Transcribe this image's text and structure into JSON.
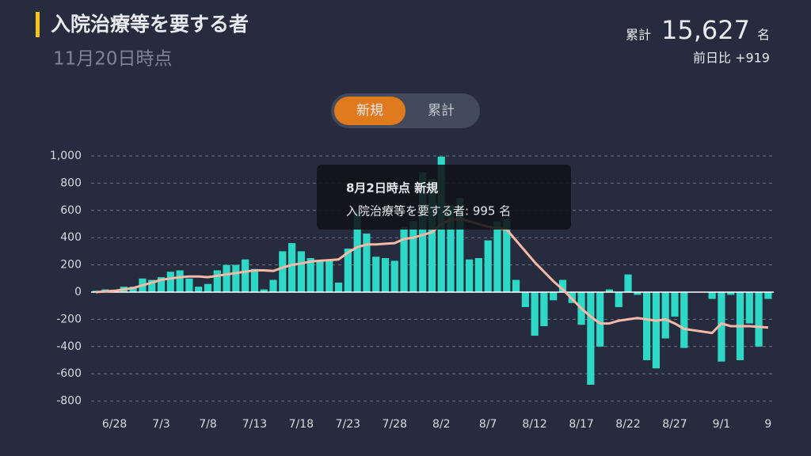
{
  "header": {
    "title": "入院治療等を要する者",
    "subtitle": "11月20日時点",
    "total_label": "累計",
    "total": "15,627",
    "total_unit": "名",
    "change": "前日比 +919"
  },
  "toggle": {
    "options": [
      "新規",
      "累計"
    ]
  },
  "tooltip": {
    "title": "8月2日時点 新規",
    "text": "入院治療等を要する者: 995 名"
  },
  "chart_data": {
    "type": "bar",
    "categories": [
      null,
      null,
      "6/28",
      null,
      null,
      null,
      null,
      "7/3",
      null,
      null,
      null,
      null,
      "7/8",
      null,
      null,
      null,
      null,
      "7/13",
      null,
      null,
      null,
      null,
      "7/18",
      null,
      null,
      null,
      null,
      "7/23",
      null,
      null,
      null,
      null,
      "7/28",
      null,
      null,
      null,
      null,
      "8/2",
      null,
      null,
      null,
      null,
      "8/7",
      null,
      null,
      null,
      null,
      "8/12",
      null,
      null,
      null,
      null,
      "8/17",
      null,
      null,
      null,
      null,
      "8/22",
      null,
      null,
      null,
      null,
      "8/27",
      null,
      null,
      null,
      null,
      "9/1",
      null,
      null,
      null,
      null,
      "9"
    ],
    "series": [
      {
        "type": "bar",
        "color": "#2ed8c6",
        "values": [
          10,
          20,
          10,
          40,
          40,
          100,
          90,
          110,
          150,
          160,
          100,
          40,
          60,
          160,
          200,
          200,
          240,
          170,
          20,
          90,
          300,
          360,
          300,
          250,
          230,
          240,
          70,
          320,
          600,
          430,
          260,
          250,
          230,
          480,
          520,
          880,
          830,
          995,
          640,
          690,
          240,
          250,
          380,
          520,
          540,
          90,
          -110,
          -320,
          -250,
          -60,
          90,
          -80,
          -240,
          -680,
          -400,
          20,
          -110,
          130,
          -20,
          -500,
          -560,
          -340,
          -180,
          -410,
          0,
          0,
          -50,
          -510,
          -20,
          -500,
          -230,
          -400,
          -50
        ]
      },
      {
        "type": "line",
        "color": "#f6b9a6",
        "values": [
          0,
          5,
          10,
          20,
          30,
          50,
          70,
          90,
          100,
          110,
          115,
          115,
          110,
          120,
          130,
          140,
          150,
          160,
          160,
          155,
          180,
          200,
          210,
          225,
          230,
          235,
          240,
          290,
          330,
          350,
          350,
          355,
          360,
          390,
          400,
          420,
          440,
          500,
          530,
          540,
          520,
          500,
          480,
          470,
          460,
          380,
          300,
          220,
          150,
          80,
          20,
          -50,
          -120,
          -180,
          -230,
          -230,
          -210,
          -200,
          -190,
          -200,
          -210,
          -200,
          -230,
          -270,
          -280,
          -290,
          -300,
          -230,
          -250,
          -250,
          -250,
          -255,
          -260
        ]
      }
    ],
    "ylim": [
      -900,
      1050
    ],
    "yticks": [
      {
        "value": 1000,
        "label": "1,000"
      },
      800,
      600,
      400,
      200,
      0,
      -200,
      -400,
      -600,
      -800
    ],
    "grid": true
  }
}
